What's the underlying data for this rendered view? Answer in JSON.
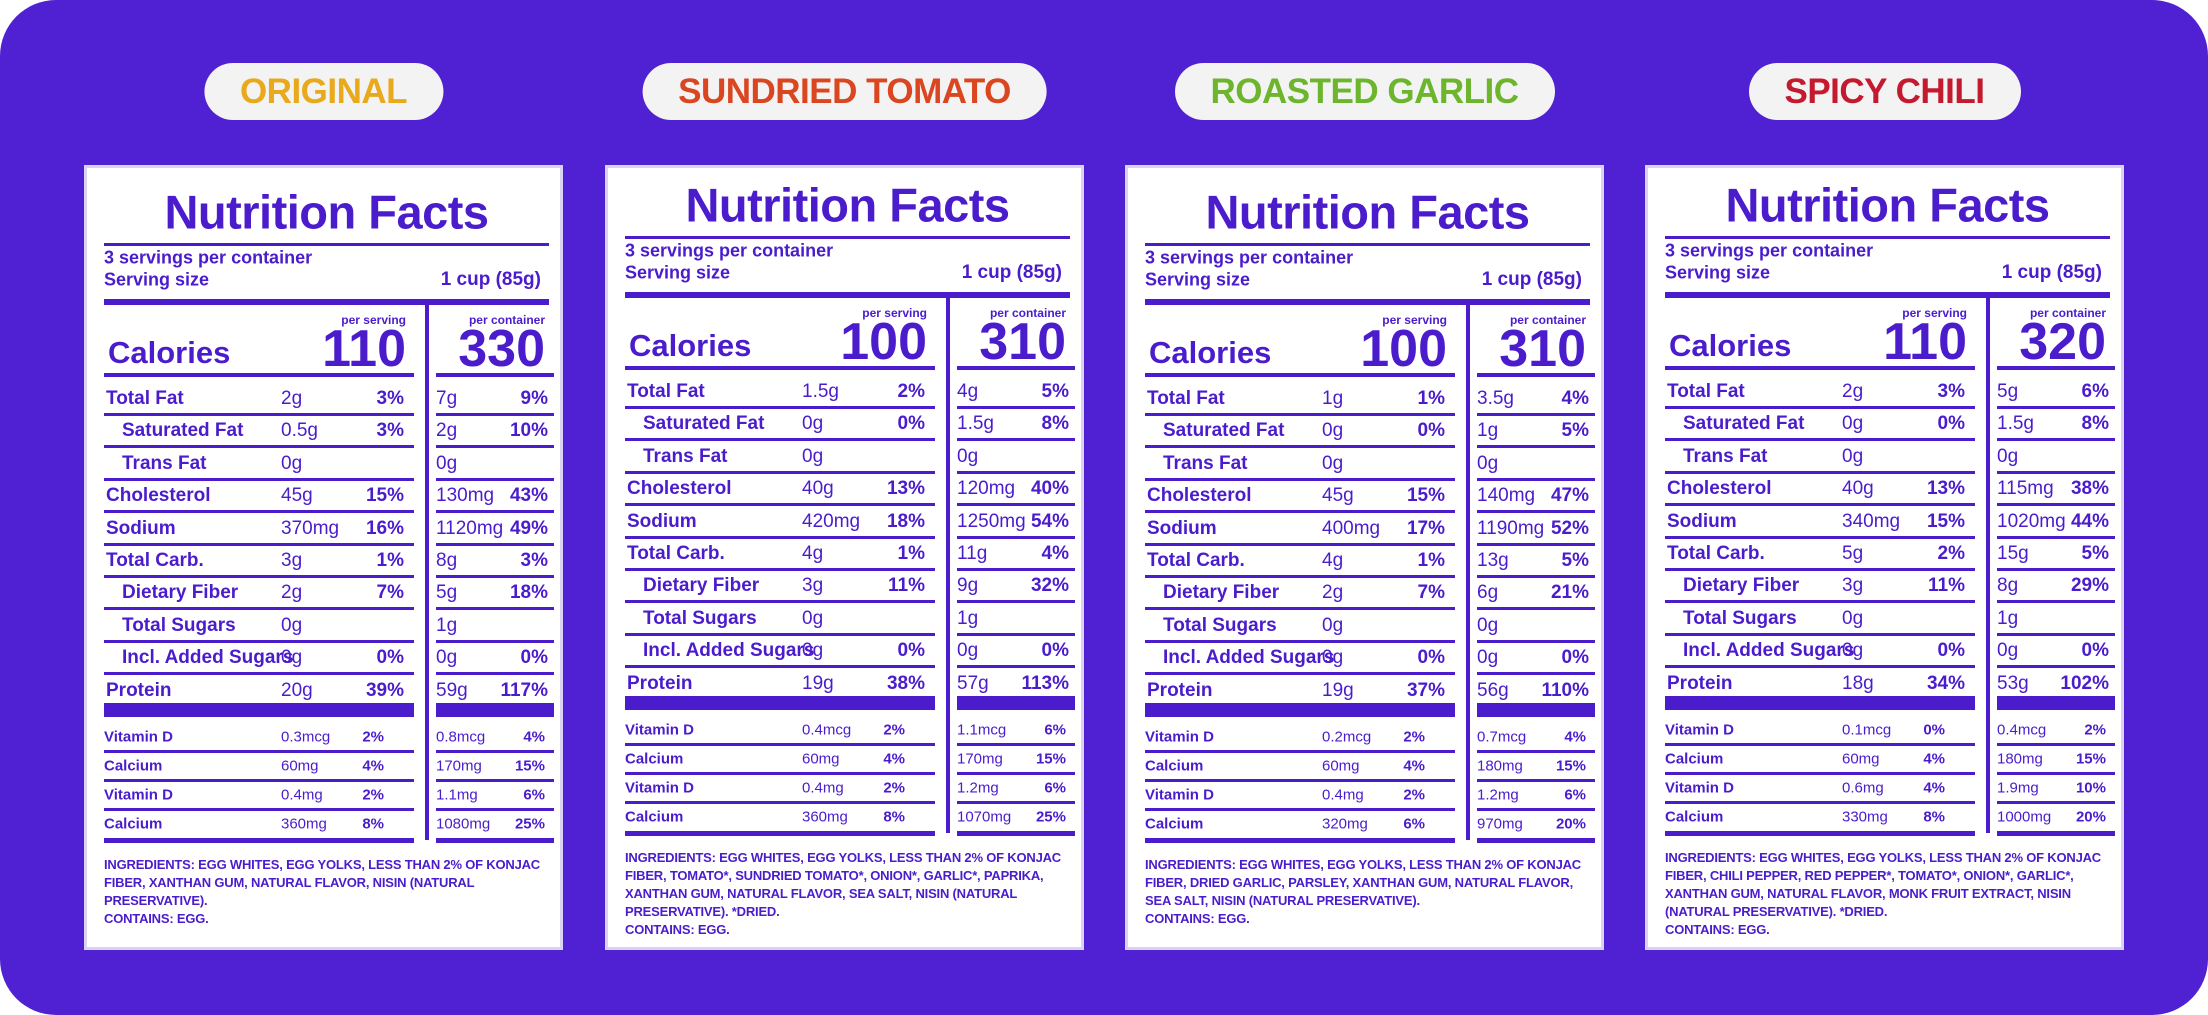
{
  "panels": [
    {
      "flavor": "ORIGINAL",
      "flavor_color": "#e9a91c",
      "title": "Nutrition Facts",
      "servings": "3 servings per container",
      "serving_size_label": "Serving size",
      "serving_size": "1 cup (85g)",
      "per_serving_label": "per serving",
      "per_container_label": "per container",
      "calories_label": "Calories",
      "calories_per_serving": 110,
      "calories_per_container": 330,
      "nutrients": [
        {
          "name": "Total Fat",
          "serving": "2g",
          "serving_dv": "3%",
          "container": "7g",
          "container_dv": "9%"
        },
        {
          "name": "Saturated Fat",
          "serving": "0.5g",
          "serving_dv": "3%",
          "container": "2g",
          "container_dv": "10%"
        },
        {
          "name": "Trans Fat",
          "serving": "0g",
          "container": "0g"
        },
        {
          "name": "Cholesterol",
          "serving": "45g",
          "serving_dv": "15%",
          "container": "130mg",
          "container_dv": "43%"
        },
        {
          "name": "Sodium",
          "serving": "370mg",
          "serving_dv": "16%",
          "container": "1120mg",
          "container_dv": "49%"
        },
        {
          "name": "Total Carb.",
          "serving": "3g",
          "serving_dv": "1%",
          "container": "8g",
          "container_dv": "3%"
        },
        {
          "name": "Dietary Fiber",
          "serving": "2g",
          "serving_dv": "7%",
          "container": "5g",
          "container_dv": "18%"
        },
        {
          "name": "Total Sugars",
          "serving": "0g",
          "container": "1g"
        },
        {
          "name": "Incl. Added Sugars",
          "serving": "0g",
          "serving_dv": "0%",
          "container": "0g",
          "container_dv": "0%"
        },
        {
          "name": "Protein",
          "serving": "20g",
          "serving_dv": "39%",
          "container": "59g",
          "container_dv": "117%"
        }
      ],
      "vitamins": [
        {
          "name": "Vitamin D",
          "serving": "0.3mcg",
          "serving_dv": "2%",
          "container": "0.8mcg",
          "container_dv": "4%"
        },
        {
          "name": "Calcium",
          "serving": "60mg",
          "serving_dv": "4%",
          "container": "170mg",
          "container_dv": "15%"
        },
        {
          "name": "Vitamin D",
          "serving": "0.4mg",
          "serving_dv": "2%",
          "container": "1.1mg",
          "container_dv": "6%"
        },
        {
          "name": "Calcium",
          "serving": "360mg",
          "serving_dv": "8%",
          "container": "1080mg",
          "container_dv": "25%"
        }
      ],
      "ingredients": "INGREDIENTS: EGG WHITES, EGG YOLKS, LESS THAN 2% OF KONJAC FIBER, XANTHAN GUM, NATURAL FLAVOR, NISIN (NATURAL PRESERVATIVE).",
      "contains": "CONTAINS: EGG."
    },
    {
      "flavor": "SUNDRIED TOMATO",
      "flavor_color": "#d9461f",
      "title": "Nutrition Facts",
      "servings": "3 servings per container",
      "serving_size_label": "Serving size",
      "serving_size": "1 cup (85g)",
      "per_serving_label": "per serving",
      "per_container_label": "per container",
      "calories_label": "Calories",
      "calories_per_serving": 100,
      "calories_per_container": 310,
      "nutrients": [
        {
          "name": "Total Fat",
          "serving": "1.5g",
          "serving_dv": "2%",
          "container": "4g",
          "container_dv": "5%"
        },
        {
          "name": "Saturated Fat",
          "serving": "0g",
          "serving_dv": "0%",
          "container": "1.5g",
          "container_dv": "8%"
        },
        {
          "name": "Trans Fat",
          "serving": "0g",
          "container": "0g"
        },
        {
          "name": "Cholesterol",
          "serving": "40g",
          "serving_dv": "13%",
          "container": "120mg",
          "container_dv": "40%"
        },
        {
          "name": "Sodium",
          "serving": "420mg",
          "serving_dv": "18%",
          "container": "1250mg",
          "container_dv": "54%"
        },
        {
          "name": "Total Carb.",
          "serving": "4g",
          "serving_dv": "1%",
          "container": "11g",
          "container_dv": "4%"
        },
        {
          "name": "Dietary Fiber",
          "serving": "3g",
          "serving_dv": "11%",
          "container": "9g",
          "container_dv": "32%"
        },
        {
          "name": "Total Sugars",
          "serving": "0g",
          "container": "1g"
        },
        {
          "name": "Incl. Added Sugars",
          "serving": "0g",
          "serving_dv": "0%",
          "container": "0g",
          "container_dv": "0%"
        },
        {
          "name": "Protein",
          "serving": "19g",
          "serving_dv": "38%",
          "container": "57g",
          "container_dv": "113%"
        }
      ],
      "vitamins": [
        {
          "name": "Vitamin D",
          "serving": "0.4mcg",
          "serving_dv": "2%",
          "container": "1.1mcg",
          "container_dv": "6%"
        },
        {
          "name": "Calcium",
          "serving": "60mg",
          "serving_dv": "4%",
          "container": "170mg",
          "container_dv": "15%"
        },
        {
          "name": "Vitamin D",
          "serving": "0.4mg",
          "serving_dv": "2%",
          "container": "1.2mg",
          "container_dv": "6%"
        },
        {
          "name": "Calcium",
          "serving": "360mg",
          "serving_dv": "8%",
          "container": "1070mg",
          "container_dv": "25%"
        }
      ],
      "ingredients": "INGREDIENTS: EGG WHITES, EGG YOLKS, LESS THAN 2% OF KONJAC FIBER, TOMATO*, SUNDRIED TOMATO*, ONION*, GARLIC*, PAPRIKA, XANTHAN GUM, NATURAL FLAVOR, SEA SALT, NISIN (NATURAL PRESERVATIVE). *DRIED.",
      "contains": "CONTAINS: EGG."
    },
    {
      "flavor": "ROASTED GARLIC",
      "flavor_color": "#6cb52c",
      "title": "Nutrition Facts",
      "servings": "3 servings per container",
      "serving_size_label": "Serving size",
      "serving_size": "1 cup (85g)",
      "per_serving_label": "per serving",
      "per_container_label": "per container",
      "calories_label": "Calories",
      "calories_per_serving": 100,
      "calories_per_container": 310,
      "nutrients": [
        {
          "name": "Total Fat",
          "serving": "1g",
          "serving_dv": "1%",
          "container": "3.5g",
          "container_dv": "4%"
        },
        {
          "name": "Saturated Fat",
          "serving": "0g",
          "serving_dv": "0%",
          "container": "1g",
          "container_dv": "5%"
        },
        {
          "name": "Trans Fat",
          "serving": "0g",
          "container": "0g"
        },
        {
          "name": "Cholesterol",
          "serving": "45g",
          "serving_dv": "15%",
          "container": "140mg",
          "container_dv": "47%"
        },
        {
          "name": "Sodium",
          "serving": "400mg",
          "serving_dv": "17%",
          "container": "1190mg",
          "container_dv": "52%"
        },
        {
          "name": "Total Carb.",
          "serving": "4g",
          "serving_dv": "1%",
          "container": "13g",
          "container_dv": "5%"
        },
        {
          "name": "Dietary Fiber",
          "serving": "2g",
          "serving_dv": "7%",
          "container": "6g",
          "container_dv": "21%"
        },
        {
          "name": "Total Sugars",
          "serving": "0g",
          "container": "0g"
        },
        {
          "name": "Incl. Added Sugars",
          "serving": "0g",
          "serving_dv": "0%",
          "container": "0g",
          "container_dv": "0%"
        },
        {
          "name": "Protein",
          "serving": "19g",
          "serving_dv": "37%",
          "container": "56g",
          "container_dv": "110%"
        }
      ],
      "vitamins": [
        {
          "name": "Vitamin D",
          "serving": "0.2mcg",
          "serving_dv": "2%",
          "container": "0.7mcg",
          "container_dv": "4%"
        },
        {
          "name": "Calcium",
          "serving": "60mg",
          "serving_dv": "4%",
          "container": "180mg",
          "container_dv": "15%"
        },
        {
          "name": "Vitamin D",
          "serving": "0.4mg",
          "serving_dv": "2%",
          "container": "1.2mg",
          "container_dv": "6%"
        },
        {
          "name": "Calcium",
          "serving": "320mg",
          "serving_dv": "6%",
          "container": "970mg",
          "container_dv": "20%"
        }
      ],
      "ingredients": "INGREDIENTS: EGG WHITES, EGG YOLKS, LESS THAN 2% OF KONJAC FIBER, DRIED GARLIC, PARSLEY, XANTHAN GUM, NATURAL FLAVOR, SEA SALT, NISIN (NATURAL PRESERVATIVE).",
      "contains": "CONTAINS: EGG."
    },
    {
      "flavor": "SPICY CHILI",
      "flavor_color": "#c41a30",
      "title": "Nutrition Facts",
      "servings": "3 servings per container",
      "serving_size_label": "Serving size",
      "serving_size": "1 cup (85g)",
      "per_serving_label": "per serving",
      "per_container_label": "per container",
      "calories_label": "Calories",
      "calories_per_serving": 110,
      "calories_per_container": 320,
      "nutrients": [
        {
          "name": "Total Fat",
          "serving": "2g",
          "serving_dv": "3%",
          "container": "5g",
          "container_dv": "6%"
        },
        {
          "name": "Saturated Fat",
          "serving": "0g",
          "serving_dv": "0%",
          "container": "1.5g",
          "container_dv": "8%"
        },
        {
          "name": "Trans Fat",
          "serving": "0g",
          "container": "0g"
        },
        {
          "name": "Cholesterol",
          "serving": "40g",
          "serving_dv": "13%",
          "container": "115mg",
          "container_dv": "38%"
        },
        {
          "name": "Sodium",
          "serving": "340mg",
          "serving_dv": "15%",
          "container": "1020mg",
          "container_dv": "44%"
        },
        {
          "name": "Total Carb.",
          "serving": "5g",
          "serving_dv": "2%",
          "container": "15g",
          "container_dv": "5%"
        },
        {
          "name": "Dietary Fiber",
          "serving": "3g",
          "serving_dv": "11%",
          "container": "8g",
          "container_dv": "29%"
        },
        {
          "name": "Total Sugars",
          "serving": "0g",
          "container": "1g"
        },
        {
          "name": "Incl. Added Sugars",
          "serving": "0g",
          "serving_dv": "0%",
          "container": "0g",
          "container_dv": "0%"
        },
        {
          "name": "Protein",
          "serving": "18g",
          "serving_dv": "34%",
          "container": "53g",
          "container_dv": "102%"
        }
      ],
      "vitamins": [
        {
          "name": "Vitamin D",
          "serving": "0.1mcg",
          "serving_dv": "0%",
          "container": "0.4mcg",
          "container_dv": "2%"
        },
        {
          "name": "Calcium",
          "serving": "60mg",
          "serving_dv": "4%",
          "container": "180mg",
          "container_dv": "15%"
        },
        {
          "name": "Vitamin D",
          "serving": "0.6mg",
          "serving_dv": "4%",
          "container": "1.9mg",
          "container_dv": "10%"
        },
        {
          "name": "Calcium",
          "serving": "330mg",
          "serving_dv": "8%",
          "container": "1000mg",
          "container_dv": "20%"
        }
      ],
      "ingredients": "INGREDIENTS: EGG WHITES, EGG YOLKS, LESS THAN 2% OF KONJAC FIBER, CHILI PEPPER, RED PEPPER*, TOMATO*, ONION*, GARLIC*, XANTHAN GUM, NATURAL FLAVOR, MONK FRUIT EXTRACT, NISIN (NATURAL PRESERVATIVE). *DRIED.",
      "contains": "CONTAINS: EGG."
    }
  ]
}
